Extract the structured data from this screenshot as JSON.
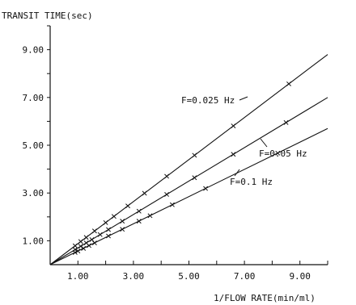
{
  "chart_data": {
    "type": "scatter",
    "ylabel": "TRANSIT TIME(sec)",
    "xlabel": "1/FLOW RATE(min/ml)",
    "xlim": [
      0,
      10
    ],
    "ylim": [
      0,
      10
    ],
    "x_ticks": [
      1,
      2,
      3,
      4,
      5,
      6,
      7,
      8,
      9,
      10
    ],
    "y_ticks": [
      1,
      2,
      3,
      4,
      5,
      6,
      7,
      8,
      9,
      10
    ],
    "x_tick_labels": [
      {
        "value": 1,
        "label": "1.00"
      },
      {
        "value": 3,
        "label": "3.00"
      },
      {
        "value": 5,
        "label": "5.00"
      },
      {
        "value": 7,
        "label": "7.00"
      },
      {
        "value": 9,
        "label": "9.00"
      }
    ],
    "y_tick_labels": [
      {
        "value": 1,
        "label": "1.00"
      },
      {
        "value": 3,
        "label": "3.00"
      },
      {
        "value": 5,
        "label": "5.00"
      },
      {
        "value": 7,
        "label": "7.00"
      },
      {
        "value": 9,
        "label": "9.00"
      }
    ],
    "grid": false,
    "series": [
      {
        "name": "F=0.025 Hz",
        "slope": 0.88,
        "fit_x": [
          0,
          10
        ],
        "x": [
          0.9,
          1.1,
          1.3,
          1.6,
          2.0,
          2.3,
          2.8,
          3.4,
          4.2,
          5.2,
          6.6,
          8.6
        ],
        "y": [
          0.79,
          0.97,
          1.14,
          1.41,
          1.76,
          2.02,
          2.46,
          2.99,
          3.7,
          4.58,
          5.81,
          7.57
        ]
      },
      {
        "name": "F=0.05 Hz",
        "slope": 0.7,
        "fit_x": [
          0,
          10
        ],
        "x": [
          0.9,
          1.1,
          1.3,
          1.5,
          1.8,
          2.1,
          2.6,
          3.2,
          4.2,
          5.2,
          6.6,
          8.5
        ],
        "y": [
          0.63,
          0.77,
          0.91,
          1.05,
          1.26,
          1.47,
          1.82,
          2.24,
          2.94,
          3.64,
          4.62,
          5.95
        ]
      },
      {
        "name": "F=0.1 Hz",
        "slope": 0.57,
        "fit_x": [
          0,
          10
        ],
        "x": [
          0.9,
          1.0,
          1.2,
          1.4,
          1.6,
          2.1,
          2.6,
          3.2,
          3.6,
          4.4,
          5.6,
          8.2
        ],
        "y": [
          0.51,
          0.57,
          0.68,
          0.8,
          0.91,
          1.2,
          1.48,
          1.82,
          2.05,
          2.51,
          3.19,
          4.67
        ]
      }
    ],
    "annotations": [
      {
        "text": "F=0.025 Hz",
        "series": 0
      },
      {
        "text": "F=0.05 Hz",
        "series": 1
      },
      {
        "text": "F=0.1 Hz",
        "series": 2
      }
    ]
  }
}
